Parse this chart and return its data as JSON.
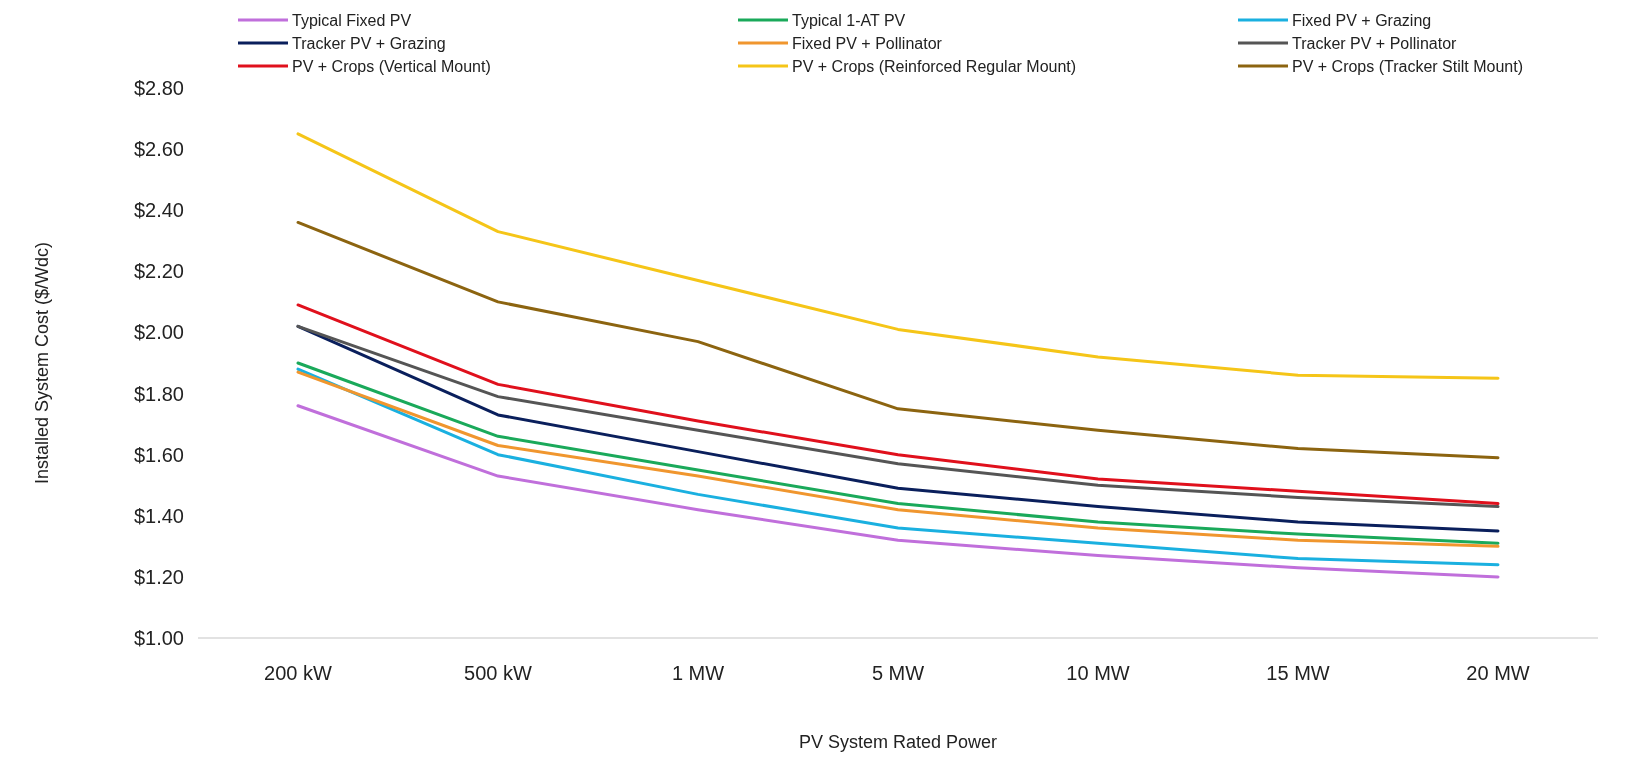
{
  "chart_data": {
    "type": "line",
    "xlabel": "PV System Rated Power",
    "ylabel": "Installed System Cost ($/Wdc)",
    "categories": [
      "200 kW",
      "500 kW",
      "1 MW",
      "5 MW",
      "10 MW",
      "15 MW",
      "20 MW"
    ],
    "ylim": [
      1,
      2.8
    ],
    "yticks": [
      {
        "value": 1,
        "label": "$1.00"
      },
      {
        "value": 1.2,
        "label": "$1.20"
      },
      {
        "value": 1.4,
        "label": "$1.40"
      },
      {
        "value": 1.6,
        "label": "$1.60"
      },
      {
        "value": 1.8,
        "label": "$1.80"
      },
      {
        "value": 2,
        "label": "$2.00"
      },
      {
        "value": 2.2,
        "label": "$2.20"
      },
      {
        "value": 2.4,
        "label": "$2.40"
      },
      {
        "value": 2.6,
        "label": "$2.60"
      },
      {
        "value": 2.8,
        "label": "$2.80"
      }
    ],
    "grid": false,
    "legend": "top",
    "marker": "none",
    "line_style": "solid",
    "series": [
      {
        "name": "Typical Fixed PV",
        "color": "#c06fdb",
        "values": [
          1.76,
          1.53,
          1.42,
          1.32,
          1.27,
          1.23,
          1.2
        ]
      },
      {
        "name": "Typical 1-AT PV",
        "color": "#1aa95a",
        "values": [
          1.9,
          1.66,
          1.55,
          1.44,
          1.38,
          1.34,
          1.31
        ]
      },
      {
        "name": "Fixed PV + Grazing",
        "color": "#1ab0e0",
        "values": [
          1.88,
          1.6,
          1.47,
          1.36,
          1.31,
          1.26,
          1.24
        ]
      },
      {
        "name": "Tracker PV + Grazing",
        "color": "#0a1f5c",
        "values": [
          2.02,
          1.73,
          1.61,
          1.49,
          1.43,
          1.38,
          1.35
        ]
      },
      {
        "name": "Fixed PV + Pollinator",
        "color": "#f0962e",
        "values": [
          1.87,
          1.63,
          1.53,
          1.42,
          1.36,
          1.32,
          1.3
        ]
      },
      {
        "name": "Tracker PV + Pollinator",
        "color": "#555555",
        "values": [
          2.02,
          1.79,
          1.68,
          1.57,
          1.5,
          1.46,
          1.43
        ]
      },
      {
        "name": "PV + Crops (Vertical Mount)",
        "color": "#e0101c",
        "values": [
          2.09,
          1.83,
          1.71,
          1.6,
          1.52,
          1.48,
          1.44
        ]
      },
      {
        "name": "PV + Crops (Reinforced Regular Mount)",
        "color": "#f5c518",
        "values": [
          2.65,
          2.33,
          2.17,
          2.01,
          1.92,
          1.86,
          1.85
        ]
      },
      {
        "name": "PV + Crops (Tracker Stilt Mount)",
        "color": "#8c6410",
        "values": [
          2.36,
          2.1,
          1.97,
          1.75,
          1.68,
          1.62,
          1.59
        ]
      }
    ]
  }
}
